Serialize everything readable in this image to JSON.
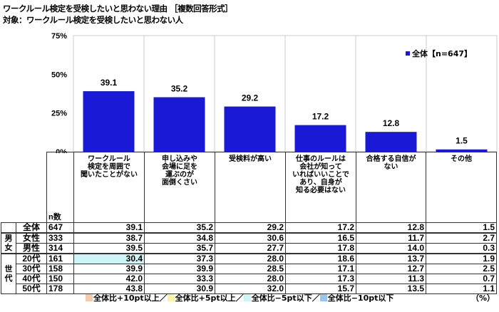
{
  "title": "ワークルール検定を受検したいと思わない理由 ［複数回答形式］",
  "subtitle": "対象：ワークルール検定を受検したいと思わない人",
  "chart_data": {
    "type": "bar",
    "categories": [
      "ワークルール検定を周囲で聞いたことがない",
      "申し込みや会場に足を運ぶのが面倒くさい",
      "受検料が高い",
      "仕事のルールは会社が知っていればいいことであり、自身が知る必要はない",
      "合格する自信がない",
      "その他"
    ],
    "series": [
      {
        "name": "全体【n=647】",
        "values": [
          39.1,
          35.2,
          29.2,
          17.2,
          12.8,
          1.5
        ],
        "color": "#1a1ad6"
      }
    ],
    "yticks": [
      "0%",
      "25%",
      "50%",
      "75%"
    ],
    "ylim": [
      0,
      75
    ],
    "legend": "top-right",
    "grid": "vertical"
  },
  "table": {
    "n_label": "n数",
    "headers": [
      "ワークルール\n検定を周囲で\n聞いたことがない",
      "申し込みや\n会場に足を\n運ぶのが\n面倒くさい",
      "受検料が高い",
      "仕事のルールは\n会社が知って\nいればいいことで\nあり、自身が\n知る必要はない",
      "合格する自信が\nない",
      "その他"
    ],
    "groups": {
      "gender": "男女",
      "age": "世代"
    },
    "rows": [
      {
        "label": "全体",
        "n": "647",
        "values": [
          "39.1",
          "35.2",
          "29.2",
          "17.2",
          "12.8",
          "1.5"
        ]
      },
      {
        "label": "女性",
        "n": "333",
        "values": [
          "38.7",
          "34.8",
          "30.6",
          "16.5",
          "11.7",
          "2.7"
        ]
      },
      {
        "label": "男性",
        "n": "314",
        "values": [
          "39.5",
          "35.7",
          "27.7",
          "17.8",
          "14.0",
          "0.3"
        ]
      },
      {
        "label": "20代",
        "n": "161",
        "values": [
          "30.4",
          "37.3",
          "28.0",
          "18.6",
          "13.7",
          "1.9"
        ],
        "highlight": [
          0
        ]
      },
      {
        "label": "30代",
        "n": "158",
        "values": [
          "39.9",
          "39.9",
          "28.5",
          "17.1",
          "12.7",
          "2.5"
        ]
      },
      {
        "label": "40代",
        "n": "150",
        "values": [
          "42.0",
          "33.3",
          "28.0",
          "17.3",
          "11.3",
          "0.7"
        ]
      },
      {
        "label": "50代",
        "n": "178",
        "values": [
          "43.8",
          "30.9",
          "32.0",
          "15.7",
          "13.5",
          "1.1"
        ]
      }
    ],
    "highlight_color": "#ccf5f8"
  },
  "legend": [
    {
      "label": "全体比+10pt以上",
      "color": "#f8c9a8"
    },
    {
      "label": "全体比+5pt以上",
      "color": "#fbf3a8"
    },
    {
      "label": "全体比−5pt以下",
      "color": "#ccf5f8"
    },
    {
      "label": "全体比−10pt以下",
      "color": "#99c4ee"
    }
  ],
  "legend_sep": "／",
  "unit": "（%）"
}
